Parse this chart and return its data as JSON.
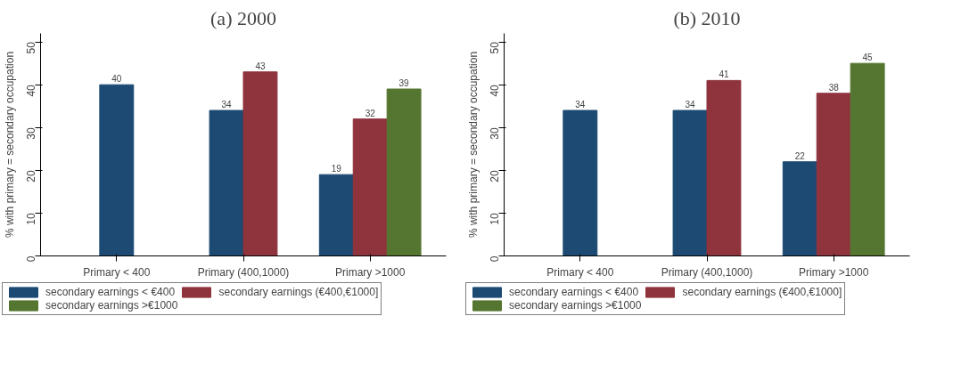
{
  "chart_data": [
    {
      "type": "bar",
      "title": "(a) 2000",
      "ylabel": "% with primary = secondary occupation",
      "categories": [
        "Primary < 400",
        "Primary (400,1000)",
        "Primary >1000"
      ],
      "series": [
        {
          "name": "secondary earnings < €400",
          "color": "#1c4a73",
          "values": [
            40,
            34,
            19
          ]
        },
        {
          "name": "secondary earnings (€400,€1000]",
          "color": "#8f333d",
          "values": [
            null,
            43,
            32
          ]
        },
        {
          "name": "secondary earnings >€1000",
          "color": "#557630",
          "values": [
            null,
            null,
            39
          ]
        }
      ],
      "ylim": [
        0,
        52
      ],
      "yticks": [
        0,
        10,
        20,
        30,
        40,
        50
      ],
      "data_labels": true,
      "legend": "bottom",
      "grid": false
    },
    {
      "type": "bar",
      "title": "(b) 2010",
      "ylabel": "% with primary = secondary occupation",
      "categories": [
        "Primary < 400",
        "Primary (400,1000)",
        "Primary >1000"
      ],
      "series": [
        {
          "name": "secondary earnings < €400",
          "color": "#1c4a73",
          "values": [
            34,
            34,
            22
          ]
        },
        {
          "name": "secondary earnings (€400,€1000]",
          "color": "#8f333d",
          "values": [
            null,
            41,
            38
          ]
        },
        {
          "name": "secondary earnings >€1000",
          "color": "#557630",
          "values": [
            null,
            null,
            45
          ]
        }
      ],
      "ylim": [
        0,
        52
      ],
      "yticks": [
        0,
        10,
        20,
        30,
        40,
        50
      ],
      "data_labels": true,
      "legend": "bottom",
      "grid": false
    }
  ]
}
